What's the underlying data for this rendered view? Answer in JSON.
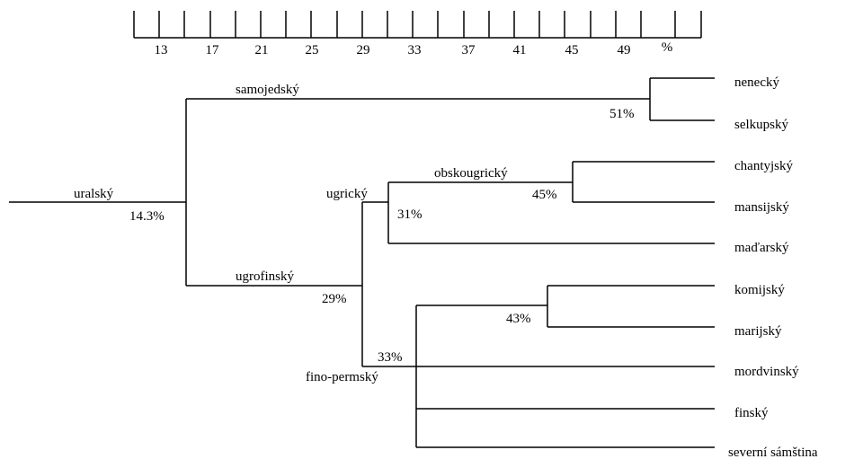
{
  "scale": {
    "ticks": [
      "13",
      "17",
      "21",
      "25",
      "29",
      "33",
      "37",
      "41",
      "45",
      "49"
    ],
    "unit": "%"
  },
  "tree": {
    "root": {
      "label": "uralský",
      "value": "14.3%"
    },
    "branches": [
      {
        "key": "samojedsky",
        "label": "samojedský",
        "value": null
      },
      {
        "key": "samojedsky_split",
        "label": null,
        "value": "51%"
      },
      {
        "key": "ugrofinsky",
        "label": "ugrofinský",
        "value": "29%"
      },
      {
        "key": "ugricky",
        "label": "ugrický",
        "value": "31%"
      },
      {
        "key": "obskougricky",
        "label": "obskougrický",
        "value": "45%"
      },
      {
        "key": "fino_permsky",
        "label": "fino-permský",
        "value": "33%"
      },
      {
        "key": "perm_volga",
        "label": null,
        "value": "43%"
      }
    ],
    "leaves": [
      "nenecký",
      "selkupský",
      "chantyjský",
      "mansijský",
      "maďarský",
      "komijský",
      "marijský",
      "mordvinský",
      "finský",
      "severní sámština"
    ]
  }
}
